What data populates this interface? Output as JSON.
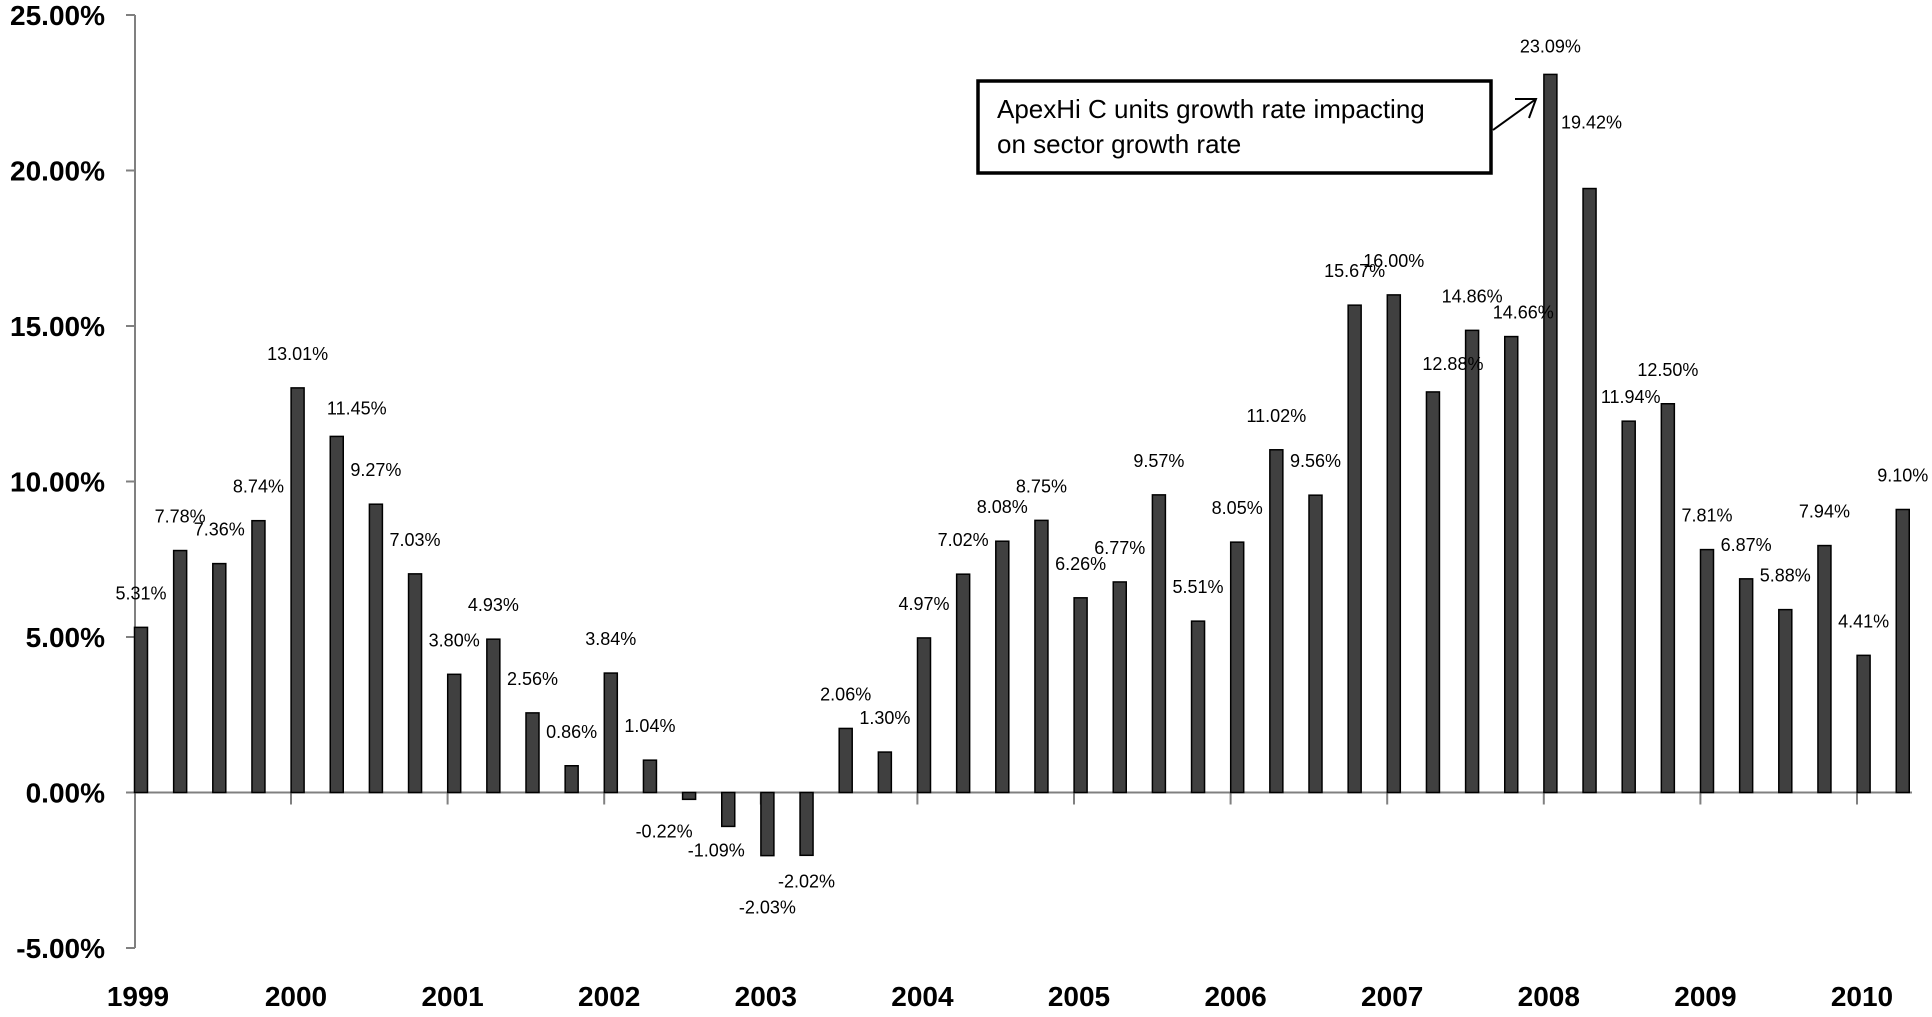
{
  "chart_data": {
    "type": "bar",
    "title": "",
    "xlabel": "",
    "ylabel": "",
    "ylim": [
      -0.05,
      0.25
    ],
    "y_ticks": [
      -0.05,
      0,
      0.05,
      0.1,
      0.15,
      0.2,
      0.25
    ],
    "y_tick_labels": [
      "-5.00%",
      "0.00%",
      "5.00%",
      "10.00%",
      "15.00%",
      "20.00%",
      "25.00%"
    ],
    "x_tick_labels": [
      "1999",
      "2000",
      "2001",
      "2002",
      "2003",
      "2004",
      "2005",
      "2006",
      "2007",
      "2008",
      "2009",
      "2010"
    ],
    "bar_color": "#404040",
    "grid": false,
    "values": [
      0.0531,
      0.0778,
      0.0736,
      0.0874,
      0.1301,
      0.1145,
      0.0927,
      0.0703,
      0.038,
      0.0493,
      0.0256,
      0.0086,
      0.0384,
      0.0104,
      -0.0022,
      -0.0109,
      -0.0203,
      -0.0202,
      0.0206,
      0.013,
      0.0497,
      0.0702,
      0.0808,
      0.0875,
      0.0626,
      0.0677,
      0.0957,
      0.0551,
      0.0805,
      0.1102,
      0.0956,
      0.1567,
      0.16,
      0.1288,
      0.1486,
      0.1466,
      0.2309,
      0.1942,
      0.1194,
      0.125,
      0.0781,
      0.0687,
      0.0588,
      0.0794,
      0.0441,
      0.091
    ],
    "data_labels": [
      "5.31%",
      "7.78%",
      "7.36%",
      "8.74%",
      "13.01%",
      "11.45%",
      "9.27%",
      "7.03%",
      "3.80%",
      "4.93%",
      "2.56%",
      "0.86%",
      "3.84%",
      "1.04%",
      "-0.22%",
      "-1.09%",
      "-2.03%",
      "-2.02%",
      "2.06%",
      "1.30%",
      "4.97%",
      "7.02%",
      "8.08%",
      "8.75%",
      "6.26%",
      "6.77%",
      "9.57%",
      "5.51%",
      "8.05%",
      "11.02%",
      "9.56%",
      "15.67%",
      "16.00%",
      "12.88%",
      "14.86%",
      "14.66%",
      "23.09%",
      "19.42%",
      "11.94%",
      "12.50%",
      "7.81%",
      "6.87%",
      "5.88%",
      "7.94%",
      "4.41%",
      "9.10%"
    ],
    "annotation": {
      "text_lines": [
        "ApexHi C units growth rate impacting",
        "on sector growth rate"
      ]
    }
  }
}
